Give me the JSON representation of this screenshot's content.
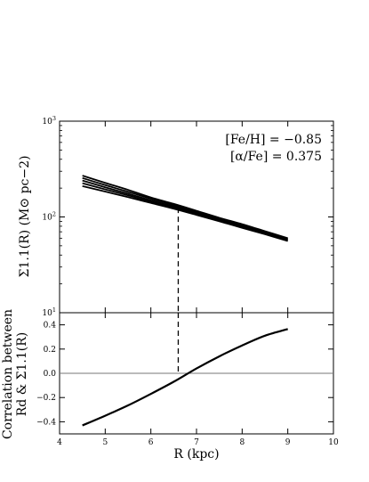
{
  "chart_data": [
    {
      "type": "line",
      "panel": "top",
      "yscale": "log",
      "xlim": [
        4,
        10
      ],
      "ylim": [
        10,
        1000
      ],
      "ylabel": "Σ1.1(R) (M⊙ pc−2)",
      "yticks": [
        {
          "value": 10,
          "base": "10",
          "exp": "1"
        },
        {
          "value": 100,
          "base": "10",
          "exp": "2"
        },
        {
          "value": 1000,
          "base": "10",
          "exp": "3"
        }
      ],
      "annotations": [
        "[Fe/H] = −0.85",
        "[α/Fe] = 0.375"
      ],
      "marker_x": 6.6,
      "series": [
        {
          "x": [
            4.5,
            5.0,
            5.5,
            6.0,
            6.5,
            7.0,
            7.5,
            8.0,
            8.5,
            9.0
          ],
          "values": [
            270,
            227,
            192,
            160,
            137,
            116,
            98,
            84,
            71,
            60
          ]
        },
        {
          "x": [
            4.5,
            5.0,
            5.5,
            6.0,
            6.5,
            7.0,
            7.5,
            8.0,
            8.5,
            9.0
          ],
          "values": [
            255,
            215,
            183,
            155,
            133,
            113,
            96,
            82,
            70,
            59
          ]
        },
        {
          "x": [
            4.5,
            5.0,
            5.5,
            6.0,
            6.5,
            7.0,
            7.5,
            8.0,
            8.5,
            9.0
          ],
          "values": [
            240,
            204,
            175,
            149,
            129,
            110,
            94,
            80,
            68,
            58
          ]
        },
        {
          "x": [
            4.5,
            5.0,
            5.5,
            6.0,
            6.5,
            7.0,
            7.5,
            8.0,
            8.5,
            9.0
          ],
          "values": [
            225,
            194,
            168,
            144,
            125,
            107,
            92,
            79,
            67,
            57
          ]
        },
        {
          "x": [
            4.5,
            5.0,
            5.5,
            6.0,
            6.5,
            7.0,
            7.5,
            8.0,
            8.5,
            9.0
          ],
          "values": [
            210,
            184,
            161,
            140,
            122,
            105,
            90,
            77,
            66,
            56
          ]
        }
      ]
    },
    {
      "type": "line",
      "panel": "bottom",
      "xlim": [
        4,
        10
      ],
      "ylim": [
        -0.5,
        0.5
      ],
      "xlabel": "R (kpc)",
      "ylabel_lines": [
        "Correlation between",
        "Rd & Σ1.1(R)"
      ],
      "xticks": [
        "4",
        "5",
        "6",
        "7",
        "8",
        "9",
        "10"
      ],
      "xtick_values": [
        4,
        5,
        6,
        7,
        8,
        9,
        10
      ],
      "yticks": [
        "−0.4",
        "−0.2",
        "0.0",
        "0.2",
        "0.4"
      ],
      "ytick_values": [
        -0.4,
        -0.2,
        0.0,
        0.2,
        0.4
      ],
      "zero_line": 0,
      "marker_x": 6.6,
      "series": [
        {
          "x": [
            4.5,
            5.0,
            5.5,
            6.0,
            6.5,
            7.0,
            7.5,
            8.0,
            8.5,
            9.0
          ],
          "values": [
            -0.43,
            -0.35,
            -0.265,
            -0.17,
            -0.07,
            0.04,
            0.14,
            0.23,
            0.31,
            0.365
          ]
        }
      ]
    }
  ]
}
